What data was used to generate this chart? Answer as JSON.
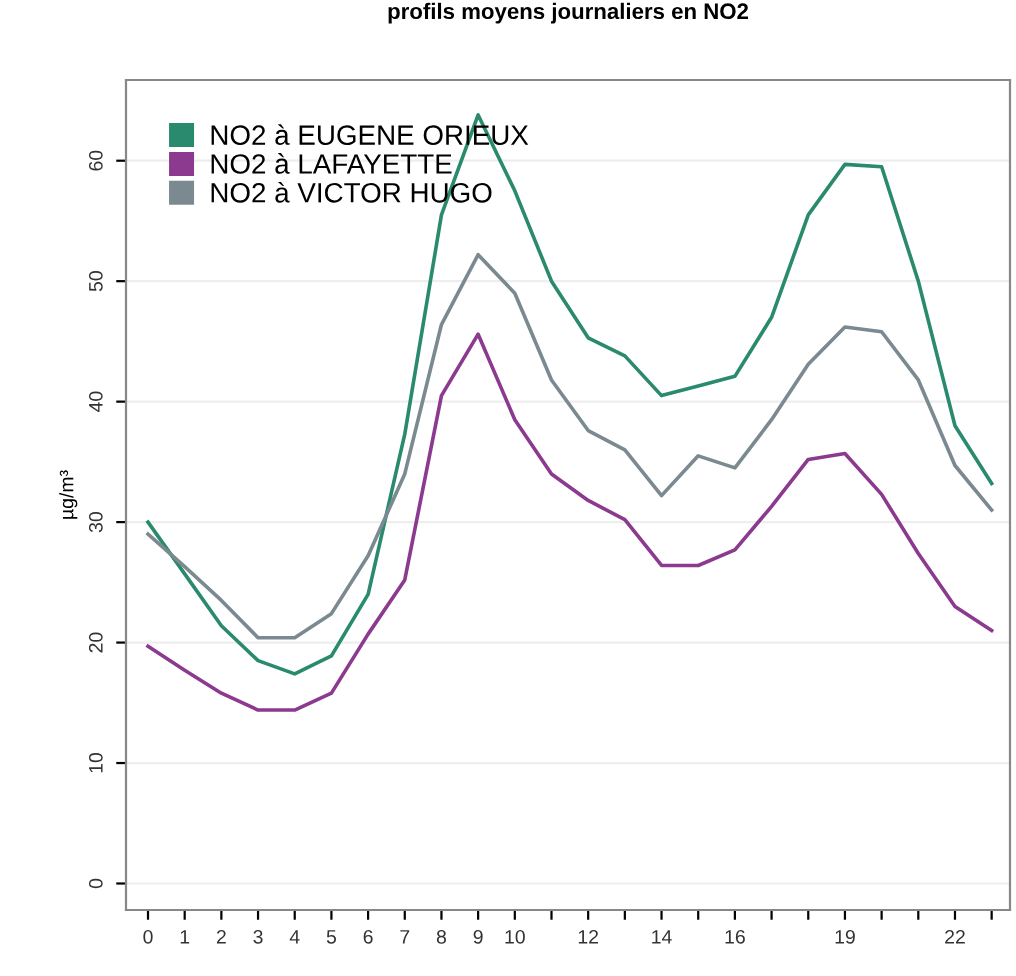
{
  "chart_data": {
    "type": "line",
    "title": "profils moyens journaliers en NO2",
    "ylabel": "µg/m³",
    "x": [
      0,
      1,
      2,
      3,
      4,
      5,
      6,
      7,
      8,
      9,
      10,
      11,
      12,
      13,
      14,
      15,
      16,
      17,
      18,
      19,
      20,
      21,
      22,
      23
    ],
    "series": [
      {
        "name": "NO2 à EUGENE ORIEUX",
        "color": "#2a8a6e",
        "values": [
          30,
          25.7,
          21.4,
          18.5,
          17.4,
          18.9,
          24,
          37.3,
          55.5,
          63.8,
          57.5,
          50,
          45.3,
          43.8,
          40.5,
          41.3,
          42.1,
          47,
          55.5,
          59.7,
          59.5,
          50,
          38,
          33.2
        ]
      },
      {
        "name": "NO2 à LAFAYETTE",
        "color": "#8b3a8f",
        "values": [
          19.7,
          17.7,
          15.8,
          14.4,
          14.4,
          15.8,
          20.7,
          25.2,
          40.5,
          45.6,
          38.5,
          34,
          31.8,
          30.2,
          26.4,
          26.4,
          27.7,
          31.3,
          35.2,
          35.7,
          32.3,
          27.4,
          23,
          21
        ]
      },
      {
        "name": "NO2 à VICTOR HUGO",
        "color": "#7a8a90",
        "values": [
          29,
          26.3,
          23.5,
          20.4,
          20.4,
          22.4,
          27.2,
          34,
          46.4,
          52.2,
          49,
          41.8,
          37.6,
          36,
          32.2,
          35.5,
          34.5,
          38.5,
          43.1,
          46.2,
          45.8,
          41.8,
          34.7,
          31
        ]
      }
    ],
    "xlim": [
      -0.6,
      23.5
    ],
    "ylim": [
      -2.2,
      66.7
    ],
    "xticks": [
      0,
      1,
      2,
      3,
      4,
      5,
      6,
      7,
      8,
      9,
      10,
      {
        "value": 11,
        "label": null
      },
      12,
      {
        "value": 13,
        "label": null
      },
      14,
      {
        "value": 15,
        "label": null
      },
      16,
      {
        "value": 17,
        "label": null
      },
      {
        "value": 18,
        "label": null
      },
      19,
      {
        "value": 20,
        "label": null
      },
      {
        "value": 21,
        "label": null
      },
      22,
      {
        "value": 23,
        "label": null
      }
    ],
    "yticks": [
      0,
      10,
      20,
      30,
      40,
      50,
      60
    ],
    "grid": "y",
    "legend": "top left"
  }
}
